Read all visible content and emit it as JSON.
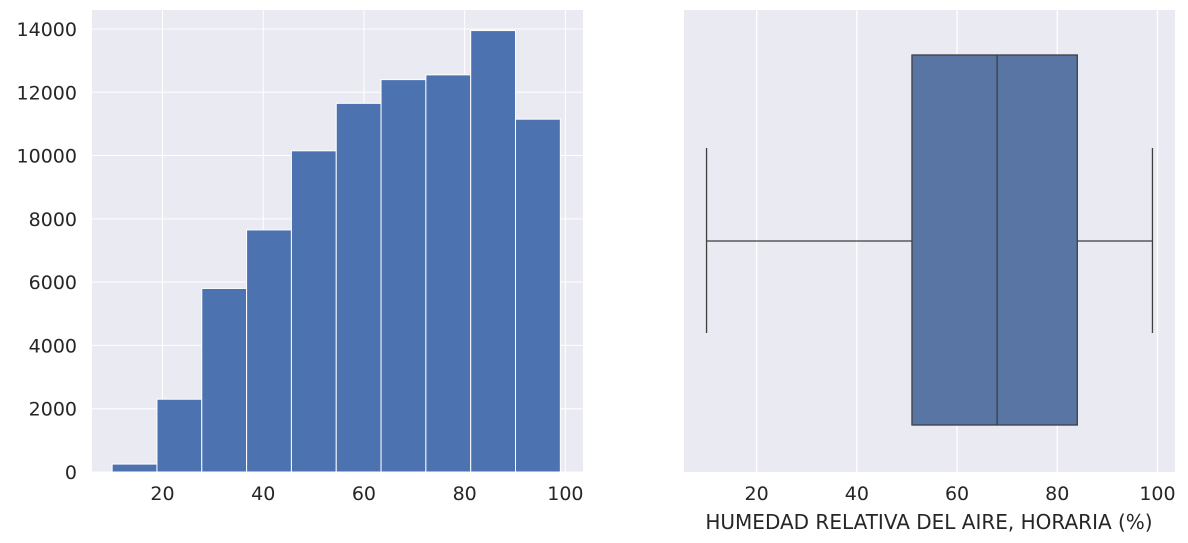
{
  "chart_data": [
    {
      "type": "bar",
      "subtype": "histogram",
      "bin_edges": [
        10,
        18.9,
        27.8,
        36.7,
        45.6,
        54.5,
        63.4,
        72.3,
        81.2,
        90.1,
        99
      ],
      "values": [
        250,
        2300,
        5800,
        7650,
        10150,
        11650,
        12400,
        12550,
        13950,
        11150
      ],
      "xlim": [
        6,
        103.5
      ],
      "ylim": [
        0,
        14600
      ],
      "xticks": [
        20,
        40,
        60,
        80,
        100
      ],
      "yticks": [
        0,
        2000,
        4000,
        6000,
        8000,
        10000,
        12000,
        14000
      ],
      "xtick_labels": [
        "20",
        "40",
        "60",
        "80",
        "100"
      ],
      "ytick_labels": [
        "0",
        "2000",
        "4000",
        "6000",
        "8000",
        "10000",
        "12000",
        "14000"
      ],
      "xlabel": "",
      "ylabel": "",
      "grid": true,
      "colors": {
        "bar": "#4c72b0",
        "background": "#eaeaf2",
        "grid": "#ffffff",
        "edge": "#ffffff"
      }
    },
    {
      "type": "box",
      "orientation": "horizontal",
      "whisker_low": 10,
      "q1": 51,
      "median": 68,
      "q3": 84,
      "whisker_high": 99,
      "xlim": [
        5.5,
        103.5
      ],
      "xticks": [
        20,
        40,
        60,
        80,
        100
      ],
      "xtick_labels": [
        "20",
        "40",
        "60",
        "80",
        "100"
      ],
      "xlabel": "HUMEDAD RELATIVA DEL AIRE, HORARIA (%)",
      "grid": true,
      "colors": {
        "box": "#5875a4",
        "line": "#3f3f3f",
        "background": "#eaeaf2",
        "grid": "#ffffff"
      }
    }
  ]
}
